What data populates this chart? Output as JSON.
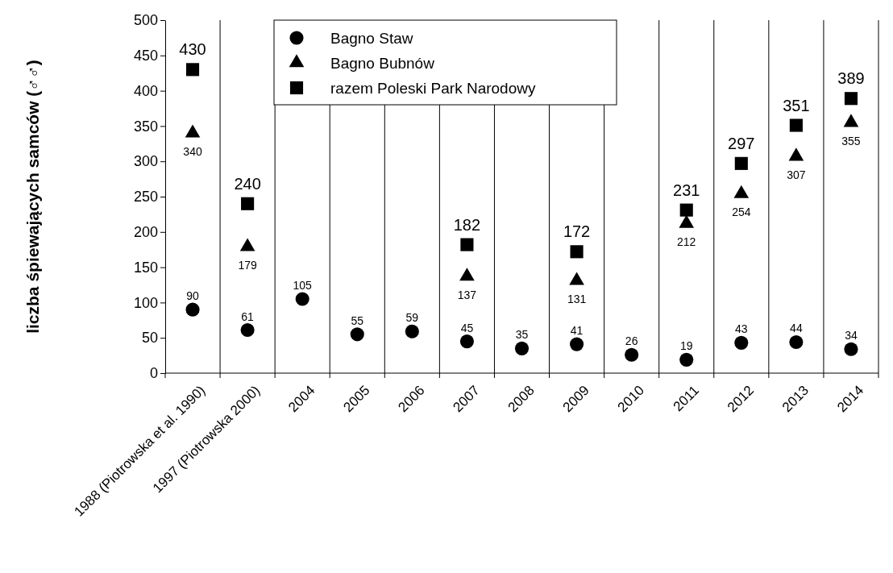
{
  "chart_data": {
    "type": "scatter",
    "ylabel": "liczba śpiewających samców (♂♂)",
    "categories": [
      "1988 (Piotrowska et al. 1990)",
      "1997 (Piotrowska 2000)",
      "2004",
      "2005",
      "2006",
      "2007",
      "2008",
      "2009",
      "2010",
      "2011",
      "2012",
      "2013",
      "2014"
    ],
    "series": [
      {
        "name": "Bagno Staw",
        "color": "#000000",
        "marker": "circle",
        "values": [
          90,
          61,
          105,
          55,
          59,
          45,
          35,
          41,
          26,
          19,
          43,
          44,
          34
        ]
      },
      {
        "name": "Bagno Bubnów",
        "color": "#000000",
        "marker": "triangle",
        "values": [
          340,
          179,
          null,
          null,
          null,
          137,
          null,
          131,
          null,
          212,
          254,
          307,
          355
        ]
      },
      {
        "name": "razem Poleski Park Narodowy",
        "color": "#000000",
        "marker": "square",
        "values": [
          430,
          240,
          null,
          null,
          null,
          182,
          null,
          172,
          null,
          231,
          297,
          351,
          389
        ]
      }
    ],
    "ylim": [
      0,
      500
    ],
    "yticks": [
      0,
      50,
      100,
      150,
      200,
      250,
      300,
      350,
      400,
      450,
      500
    ],
    "grid": "x",
    "legend": "top",
    "data_labels": true
  }
}
